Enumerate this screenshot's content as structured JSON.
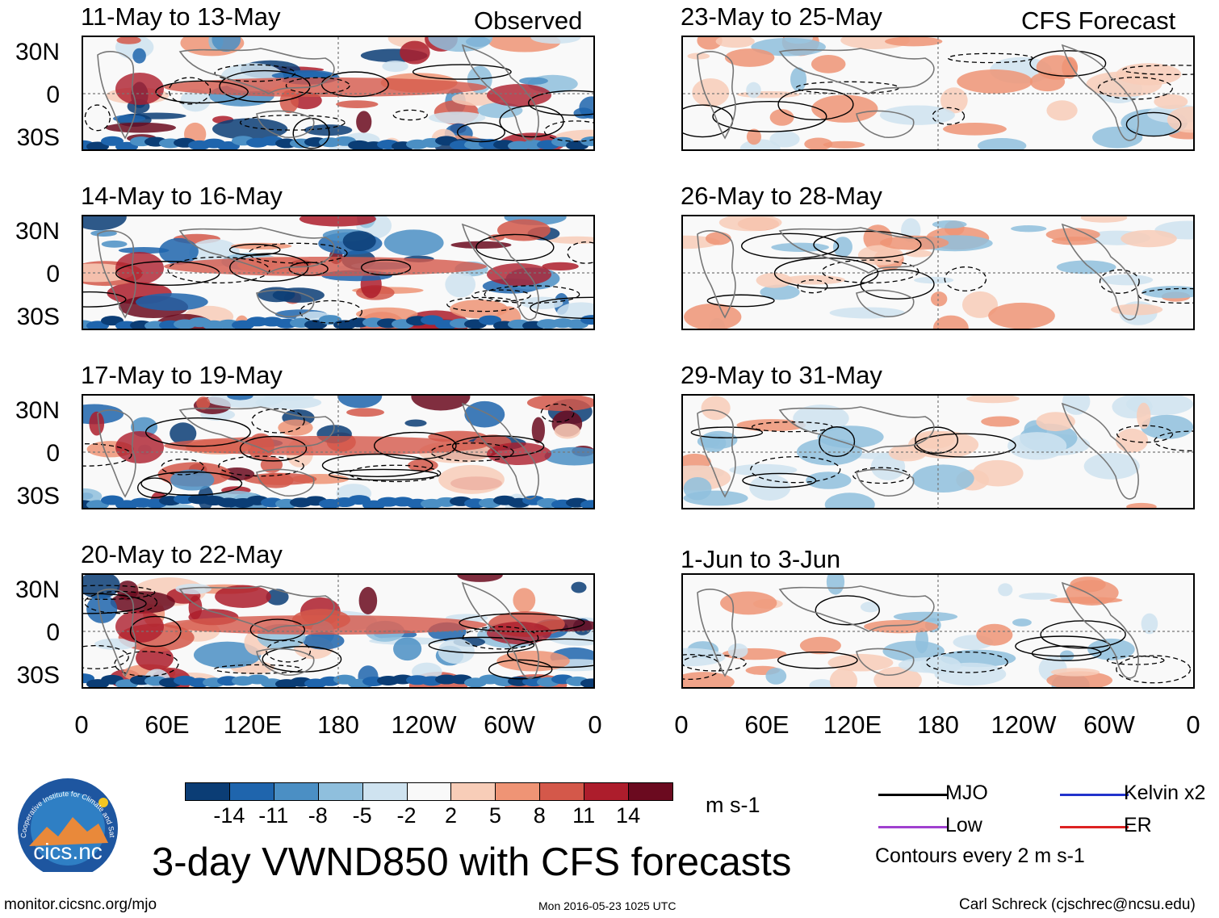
{
  "panels": {
    "observed": [
      {
        "title": "11-May to 13-May",
        "label": "Observed"
      },
      {
        "title": "14-May to 16-May"
      },
      {
        "title": "17-May to 19-May"
      },
      {
        "title": "20-May to 22-May"
      }
    ],
    "forecast": [
      {
        "title": "23-May to 25-May",
        "label": "CFS Forecast"
      },
      {
        "title": "26-May to 28-May"
      },
      {
        "title": "29-May to 31-May"
      },
      {
        "title": "1-Jun to 3-Jun"
      }
    ]
  },
  "axes": {
    "y_labels": [
      "30N",
      "0",
      "30S"
    ],
    "x_labels": [
      "0",
      "60E",
      "120E",
      "180",
      "120W",
      "60W",
      "0"
    ]
  },
  "colorbar": {
    "ticks": [
      "-14",
      "-11",
      "-8",
      "-5",
      "-2",
      "2",
      "5",
      "8",
      "11",
      "14"
    ],
    "units": "m s-1",
    "colors": [
      "#0b3d75",
      "#1f65ad",
      "#4b8fc4",
      "#8fbfdd",
      "#cfe3f0",
      "#f9f9f9",
      "#f8cdb8",
      "#ef9475",
      "#d4584a",
      "#ad1d2c",
      "#6b0a1f"
    ]
  },
  "legend": {
    "items": [
      {
        "label": "MJO",
        "color": "#000000"
      },
      {
        "label": "Kelvin x2",
        "color": "#2233cc"
      },
      {
        "label": "Low",
        "color": "#a040d0"
      },
      {
        "label": "ER",
        "color": "#dd2222"
      }
    ],
    "contour_note": "Contours every 2 m s-1"
  },
  "main_title": "3-day VWND850 with CFS forecasts",
  "logo_text": "cics.nc",
  "logo_ring_text": "Cooperative Institute for Climate and Satellites",
  "footer": {
    "url": "monitor.cicsnc.org/mjo",
    "timestamp": "Mon 2016-05-23 1025 UTC",
    "author": "Carl Schreck (cjschrec@ncsu.edu)"
  }
}
